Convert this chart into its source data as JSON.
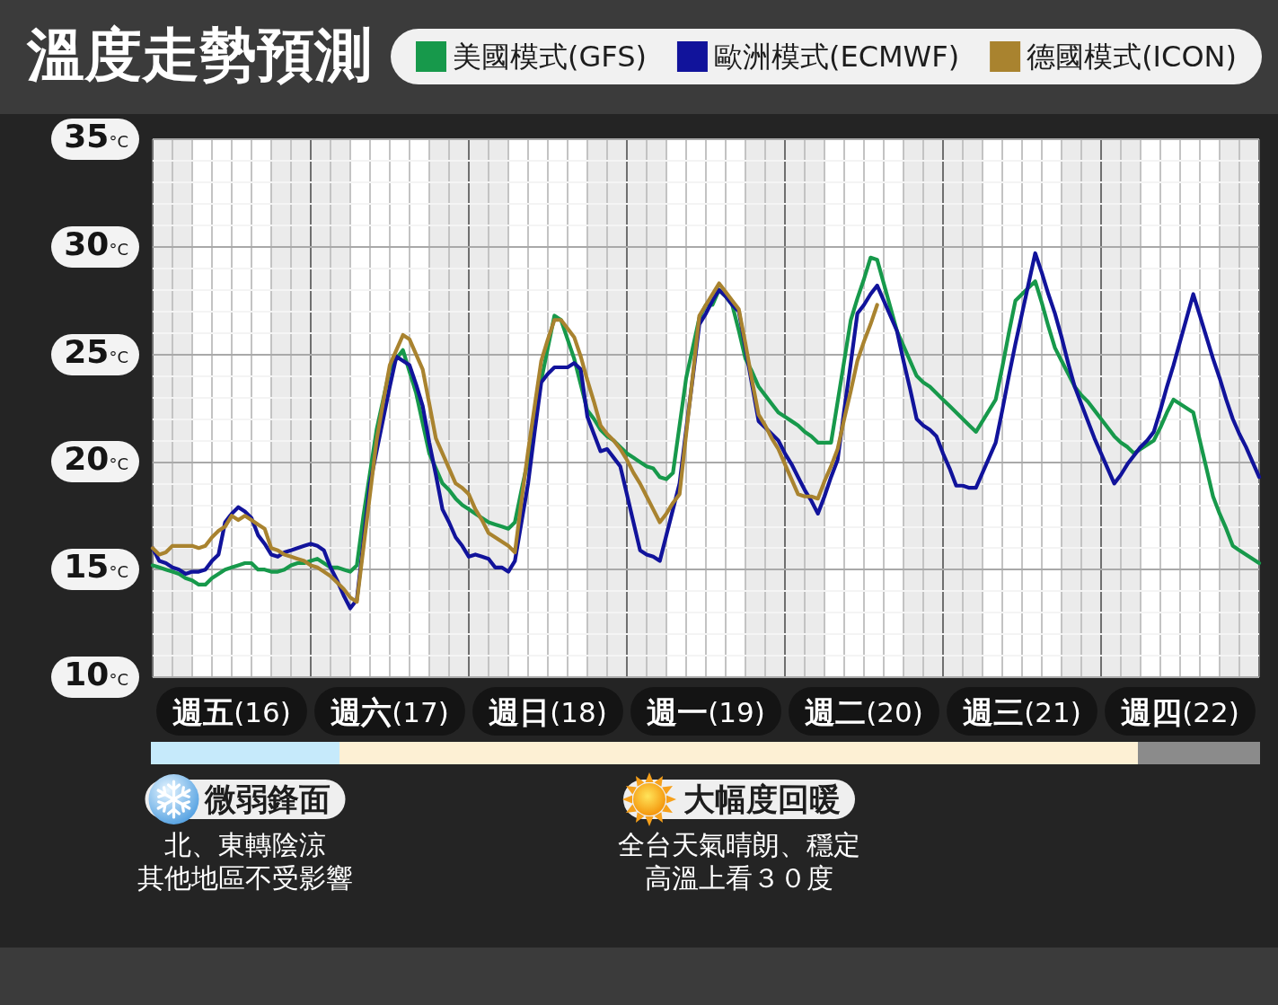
{
  "chart_data": {
    "type": "line",
    "title": "溫度走勢預測",
    "legend": "top right",
    "grid": true,
    "line_style": "solid",
    "marker": "none",
    "categories": [
      null,
      null,
      null,
      null,
      null,
      null,
      null,
      null,
      null,
      null,
      null,
      null,
      "週五(16)",
      null,
      null,
      null,
      null,
      null,
      null,
      null,
      null,
      null,
      null,
      null,
      null,
      null,
      null,
      null,
      null,
      null,
      null,
      null,
      null,
      null,
      null,
      null,
      "週六(17)",
      null,
      null,
      null,
      null,
      null,
      null,
      null,
      null,
      null,
      null,
      null,
      null,
      null,
      null,
      null,
      null,
      null,
      null,
      null,
      null,
      null,
      null,
      null,
      "週日(18)",
      null,
      null,
      null,
      null,
      null,
      null,
      null,
      null,
      null,
      null,
      null,
      null,
      null,
      null,
      null,
      null,
      null,
      null,
      null,
      null,
      null,
      null,
      null,
      "週一(19)",
      null,
      null,
      null,
      null,
      null,
      null,
      null,
      null,
      null,
      null,
      null,
      null,
      null,
      null,
      null,
      null,
      null,
      null,
      null,
      null,
      null,
      null,
      null,
      "週二(20)",
      null,
      null,
      null,
      null,
      null,
      null,
      null,
      null,
      null,
      null,
      null,
      null,
      null,
      null,
      null,
      null,
      null,
      null,
      null,
      null,
      null,
      null,
      null,
      "週三(21)",
      null,
      null,
      null,
      null,
      null,
      null,
      null,
      null,
      null,
      null,
      null,
      null,
      null,
      null,
      null,
      null,
      null,
      null,
      null,
      null,
      null,
      null,
      null,
      "週四(22)",
      null,
      null,
      null,
      null,
      null,
      null,
      null,
      null,
      null,
      null,
      null,
      null
    ],
    "ylim": [
      10,
      35
    ],
    "yticks": [
      {
        "value": 10,
        "label": "10°C"
      },
      {
        "value": 11,
        "label": null
      },
      {
        "value": 12,
        "label": null
      },
      {
        "value": 13,
        "label": null
      },
      {
        "value": 14,
        "label": null
      },
      {
        "value": 15,
        "label": "15°C"
      },
      {
        "value": 16,
        "label": null
      },
      {
        "value": 17,
        "label": null
      },
      {
        "value": 18,
        "label": null
      },
      {
        "value": 19,
        "label": null
      },
      {
        "value": 20,
        "label": "20°C"
      },
      {
        "value": 21,
        "label": null
      },
      {
        "value": 22,
        "label": null
      },
      {
        "value": 23,
        "label": null
      },
      {
        "value": 24,
        "label": null
      },
      {
        "value": 25,
        "label": "25°C"
      },
      {
        "value": 26,
        "label": null
      },
      {
        "value": 27,
        "label": null
      },
      {
        "value": 28,
        "label": null
      },
      {
        "value": 29,
        "label": null
      },
      {
        "value": 30,
        "label": "30°C"
      },
      {
        "value": 31,
        "label": null
      },
      {
        "value": 32,
        "label": null
      },
      {
        "value": 33,
        "label": null
      },
      {
        "value": 34,
        "label": null
      },
      {
        "value": 35,
        "label": "35°C"
      }
    ],
    "series": [
      {
        "name": "美國模式(GFS)",
        "color": "#17994b",
        "values": [
          15.2,
          15.1,
          15.0,
          14.9,
          14.8,
          14.6,
          14.5,
          14.3,
          14.3,
          14.6,
          14.8,
          15.0,
          15.1,
          15.2,
          15.3,
          15.3,
          15.0,
          15.0,
          14.9,
          14.9,
          15.0,
          15.2,
          15.3,
          15.3,
          15.4,
          15.5,
          15.3,
          15.1,
          15.1,
          15.0,
          14.9,
          15.2,
          17.5,
          19.5,
          21.5,
          22.9,
          24.3,
          24.8,
          25.2,
          24.2,
          23.2,
          21.8,
          20.4,
          19.7,
          19.0,
          18.7,
          18.3,
          18.0,
          17.8,
          17.6,
          17.4,
          17.2,
          17.1,
          17.0,
          16.9,
          17.2,
          18.7,
          20.1,
          22.0,
          23.8,
          25.3,
          26.8,
          26.6,
          25.7,
          24.8,
          23.6,
          22.4,
          22.0,
          21.5,
          21.2,
          21.0,
          20.7,
          20.4,
          20.2,
          20.0,
          19.8,
          19.7,
          19.3,
          19.2,
          19.5,
          21.7,
          23.9,
          25.3,
          26.7,
          27.3,
          27.3,
          28.0,
          27.7,
          27.3,
          26.1,
          24.8,
          24.2,
          23.5,
          23.1,
          22.7,
          22.3,
          22.1,
          21.9,
          21.7,
          21.4,
          21.2,
          20.9,
          20.9,
          20.9,
          22.8,
          24.7,
          26.6,
          27.6,
          28.5,
          29.5,
          29.4,
          28.3,
          27.2,
          26.1,
          25.4,
          24.7,
          24.0,
          23.7,
          23.5,
          23.2,
          22.9,
          22.6,
          22.3,
          22.0,
          21.7,
          21.4,
          21.9,
          22.4,
          22.9,
          24.4,
          26.0,
          27.5,
          27.8,
          28.1,
          28.4,
          27.4,
          26.3,
          25.3,
          24.7,
          24.1,
          23.5,
          23.1,
          22.8,
          22.4,
          22.0,
          21.6,
          21.2,
          20.9,
          20.7,
          20.4,
          20.6,
          20.8,
          21.0,
          21.6,
          22.3,
          22.9,
          22.7,
          22.5,
          22.3,
          21.0,
          19.7,
          18.4,
          17.6,
          16.9,
          16.1,
          15.9,
          15.7,
          15.5,
          15.3
        ]
      },
      {
        "name": "歐洲模式(ECMWF)",
        "color": "#11139b",
        "values": [
          16.0,
          15.4,
          15.3,
          15.1,
          15.0,
          14.8,
          14.9,
          14.9,
          15.0,
          15.4,
          15.7,
          17.2,
          17.6,
          17.9,
          17.7,
          17.4,
          16.6,
          16.2,
          15.7,
          15.6,
          15.8,
          15.9,
          16.0,
          16.1,
          16.2,
          16.1,
          15.9,
          15.1,
          14.5,
          13.8,
          13.2,
          13.6,
          16.3,
          19.0,
          20.5,
          22.0,
          23.5,
          24.9,
          24.7,
          24.5,
          23.6,
          22.6,
          20.9,
          19.4,
          17.8,
          17.2,
          16.5,
          16.1,
          15.6,
          15.7,
          15.6,
          15.5,
          15.1,
          15.1,
          14.9,
          15.4,
          17.2,
          19.0,
          21.4,
          23.7,
          24.1,
          24.4,
          24.4,
          24.4,
          24.6,
          24.3,
          22.1,
          21.3,
          20.5,
          20.6,
          20.2,
          19.8,
          18.5,
          17.2,
          15.9,
          15.7,
          15.6,
          15.4,
          16.6,
          17.8,
          19.0,
          21.5,
          23.9,
          26.4,
          26.9,
          27.5,
          28.0,
          27.7,
          27.3,
          27.0,
          25.3,
          23.6,
          21.9,
          21.6,
          21.3,
          21.0,
          20.4,
          19.9,
          19.3,
          18.7,
          18.2,
          17.6,
          18.4,
          19.3,
          20.1,
          22.4,
          24.6,
          26.9,
          27.3,
          27.8,
          28.2,
          27.5,
          26.8,
          26.1,
          24.7,
          23.4,
          22.0,
          21.7,
          21.5,
          21.2,
          20.4,
          19.7,
          18.9,
          18.9,
          18.8,
          18.8,
          19.5,
          20.2,
          20.9,
          22.4,
          24.0,
          25.5,
          26.9,
          28.3,
          29.7,
          28.8,
          27.8,
          26.9,
          25.8,
          24.6,
          23.5,
          22.7,
          21.9,
          21.1,
          20.4,
          19.7,
          19.0,
          19.4,
          19.9,
          20.3,
          20.7,
          21.0,
          21.4,
          22.4,
          23.5,
          24.5,
          25.6,
          26.7,
          27.8,
          26.8,
          25.8,
          24.8,
          23.9,
          22.9,
          22.0,
          21.3,
          20.7,
          20.0,
          19.3
        ]
      },
      {
        "name": "德國模式(ICON)",
        "color": "#a9832f",
        "values": [
          16.0,
          15.7,
          15.8,
          16.1,
          16.1,
          16.1,
          16.1,
          16.0,
          16.1,
          16.5,
          16.8,
          17.0,
          17.5,
          17.3,
          17.5,
          17.3,
          17.1,
          16.9,
          16.0,
          15.9,
          15.7,
          15.6,
          15.5,
          15.4,
          15.2,
          15.1,
          14.9,
          14.7,
          14.4,
          14.1,
          13.7,
          13.5,
          16.0,
          18.5,
          21.0,
          22.8,
          24.5,
          25.2,
          25.9,
          25.7,
          25.0,
          24.3,
          22.7,
          21.1,
          20.4,
          19.7,
          19.0,
          18.8,
          18.5,
          17.8,
          17.3,
          16.7,
          16.5,
          16.3,
          16.1,
          15.8,
          18.2,
          20.5,
          22.6,
          24.7,
          25.7,
          26.6,
          26.6,
          26.2,
          25.8,
          24.9,
          23.8,
          22.8,
          21.7,
          21.3,
          21.0,
          20.6,
          20.1,
          19.5,
          19.0,
          18.4,
          17.8,
          17.2,
          17.6,
          18.1,
          18.5,
          21.3,
          24.0,
          26.8,
          27.3,
          27.8,
          28.3,
          27.9,
          27.5,
          27.1,
          25.5,
          23.8,
          22.2,
          21.7,
          21.1,
          20.6,
          19.9,
          19.2,
          18.5,
          18.4,
          18.4,
          18.3,
          19.1,
          19.8,
          20.6,
          22.0,
          23.3,
          24.7,
          25.6,
          26.4,
          27.3,
          null,
          null,
          null,
          null,
          null,
          null,
          null,
          null,
          null,
          null,
          null,
          null,
          null,
          null,
          null,
          null,
          null,
          null,
          null,
          null,
          null,
          null,
          null,
          null,
          null,
          null,
          null,
          null,
          null,
          null,
          null,
          null,
          null,
          null,
          null,
          null,
          null,
          null,
          null,
          null,
          null,
          null,
          null,
          null,
          null,
          null,
          null,
          null,
          null,
          null,
          null,
          null,
          null,
          null,
          null,
          null,
          null,
          null
        ]
      }
    ],
    "annotations": [
      "微弱鋒面",
      "北、東轉陰涼",
      "其他地區不受影響",
      "大幅度回暖",
      "全台天氣晴朗、穩定",
      "高溫上看３０度"
    ]
  }
}
